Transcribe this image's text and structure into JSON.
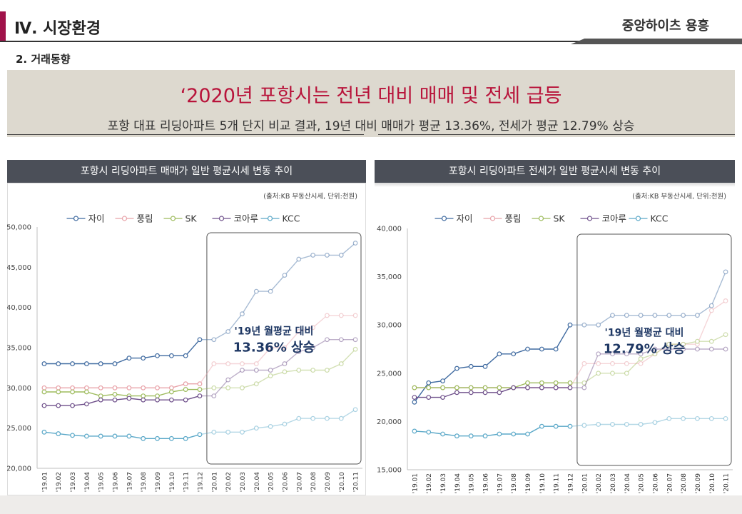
{
  "header": {
    "section_title": "Ⅳ. 시장환경",
    "project_name": "중앙하이츠 용흥",
    "sub_title": "2. 거래동향",
    "accent_color": "#a0124a"
  },
  "banner": {
    "headline": "‘2020년 포항시는 전년 대비 매매 및 전세 급등",
    "summary": "포항 대표 리딩아파트 5개 단지 비교 결과, 19년 대비 매매가 평균 13.36%, 전세가 평균 12.79% 상승",
    "headline_color": "#b8133a"
  },
  "series_colors": [
    "#3f6aa0",
    "#e8a2a8",
    "#9dbb5c",
    "#6e4f8a",
    "#5aa8c8"
  ],
  "chart_data": [
    {
      "type": "line",
      "title": "포항시 리딩아파트 매매가 일반 평균시세 변동 추이",
      "source_note": "(출처:KB 부동산시세, 단위:천원)",
      "categories": [
        "'19.01",
        "'19.02",
        "'19.03",
        "'19.04",
        "'19.05",
        "'19.06",
        "'19.07",
        "'19.08",
        "'19.09",
        "'19.10",
        "'19.11",
        "'19.12",
        "'20.01",
        "'20.02",
        "'20.03",
        "'20.04",
        "'20.05",
        "'20.06",
        "'20.07",
        "'20.08",
        "'20.09",
        "'20.10",
        "'20.11"
      ],
      "ylim": [
        20000,
        50000
      ],
      "yticks": [
        "20,000",
        "25,000",
        "30,000",
        "35,000",
        "40,000",
        "45,000",
        "50,000"
      ],
      "legend_position": "top",
      "highlight_start_index": 11.5,
      "annotation_line1": "'19년 월평균 대비",
      "annotation_line2": "13.36% 상승",
      "series": [
        {
          "name": "자이",
          "values": [
            33000,
            33000,
            33000,
            33000,
            33000,
            33000,
            33700,
            33700,
            34000,
            34000,
            34000,
            36000,
            36000,
            37000,
            39200,
            42000,
            42000,
            44000,
            46000,
            46500,
            46500,
            46500,
            48000
          ]
        },
        {
          "name": "풍림",
          "values": [
            30000,
            30000,
            30000,
            30000,
            30000,
            30000,
            30000,
            30000,
            30000,
            30000,
            30500,
            30500,
            33000,
            33000,
            33000,
            33000,
            35000,
            35000,
            37000,
            37500,
            39000,
            39000,
            39000
          ]
        },
        {
          "name": "SK",
          "values": [
            29500,
            29500,
            29500,
            29500,
            29000,
            29200,
            29000,
            29000,
            29000,
            29500,
            29800,
            29800,
            30000,
            30000,
            30000,
            30500,
            31500,
            32000,
            32200,
            32200,
            32200,
            33000,
            34800
          ]
        },
        {
          "name": "코아루",
          "values": [
            27800,
            27800,
            27800,
            28000,
            28500,
            28500,
            28700,
            28500,
            28500,
            28500,
            28500,
            29000,
            29000,
            31000,
            32200,
            32200,
            32200,
            33000,
            34500,
            35000,
            36000,
            36000,
            36000
          ]
        },
        {
          "name": "KCC",
          "values": [
            24500,
            24300,
            24100,
            24000,
            24000,
            24000,
            24000,
            23700,
            23700,
            23700,
            23700,
            24200,
            24500,
            24500,
            24500,
            25000,
            25200,
            25500,
            26200,
            26200,
            26200,
            26200,
            27300
          ]
        }
      ]
    },
    {
      "type": "line",
      "title": "포항시 리딩아파트 전세가 일반 평균시세 변동 추이",
      "source_note": "(출처:KB 부동산시세, 단위:천원)",
      "categories": [
        "'19.01",
        "'19.02",
        "'19.03",
        "'19.04",
        "'19.05",
        "'19.06",
        "'19.07",
        "'19.08",
        "'19.09",
        "'19.10",
        "'19.11",
        "'19.12",
        "'20.01",
        "'20.02",
        "'20.03",
        "'20.04",
        "'20.05",
        "'20.06",
        "'20.07",
        "'20.08",
        "'20.09",
        "'20.10",
        "'20.11"
      ],
      "ylim": [
        15000,
        40000
      ],
      "yticks": [
        "15,000",
        "20,000",
        "25,000",
        "30,000",
        "35,000",
        "40,000"
      ],
      "legend_position": "top",
      "highlight_start_index": 11.5,
      "annotation_line1": "'19년 월평균 대비",
      "annotation_line2": "12.79% 상승",
      "series": [
        {
          "name": "자이",
          "values": [
            22000,
            24000,
            24200,
            25500,
            25700,
            25700,
            27000,
            27000,
            27500,
            27500,
            27500,
            30000,
            30000,
            30000,
            31000,
            31000,
            31000,
            31000,
            31000,
            31000,
            31000,
            32000,
            35500
          ]
        },
        {
          "name": "풍림",
          "values": [
            23500,
            23500,
            23500,
            23500,
            23500,
            23500,
            23500,
            23500,
            23500,
            23500,
            23500,
            23500,
            26000,
            26000,
            26000,
            26000,
            26000,
            27000,
            28000,
            28000,
            28000,
            31500,
            32500
          ]
        },
        {
          "name": "SK",
          "values": [
            23500,
            23500,
            23500,
            23500,
            23500,
            23500,
            23500,
            23500,
            24000,
            24000,
            24000,
            24000,
            24000,
            25000,
            25000,
            25000,
            26500,
            27000,
            28000,
            28000,
            28300,
            28300,
            29000
          ]
        },
        {
          "name": "코아루",
          "values": [
            22500,
            22500,
            22500,
            23000,
            23000,
            23000,
            23000,
            23500,
            23500,
            23500,
            23500,
            23500,
            23500,
            27000,
            27000,
            27000,
            27000,
            27500,
            27500,
            27500,
            27500,
            27500,
            27500
          ]
        },
        {
          "name": "KCC",
          "values": [
            19000,
            18900,
            18700,
            18500,
            18500,
            18500,
            18700,
            18700,
            18700,
            19500,
            19500,
            19500,
            19600,
            19700,
            19700,
            19700,
            19700,
            19900,
            20300,
            20300,
            20300,
            20300,
            20300
          ]
        }
      ]
    }
  ]
}
